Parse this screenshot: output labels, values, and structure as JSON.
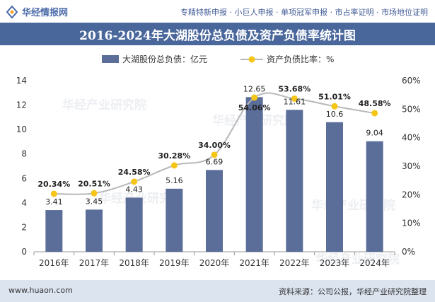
{
  "header": {
    "logo_text": "华经情报网",
    "services": "专精特新申报 · 小巨人申报 · 单项冠军申报 · 市占率证明 · 市场地位证明"
  },
  "chart_data": {
    "type": "bar+line",
    "title": "2016-2024年大湖股份总负债及资产负债率统计图",
    "categories": [
      "2016年",
      "2017年",
      "2018年",
      "2019年",
      "2020年",
      "2021年",
      "2022年",
      "2023年",
      "2024年"
    ],
    "series": [
      {
        "name": "大湖股份总负债：亿元",
        "type": "bar",
        "axis": "left",
        "values": [
          3.41,
          3.45,
          4.43,
          5.16,
          6.69,
          12.65,
          11.61,
          10.6,
          9.04
        ],
        "labels": [
          "3.41",
          "3.45",
          "4.43",
          "5.16",
          "6.69",
          "12.65",
          "11.61",
          "10.6",
          "9.04"
        ]
      },
      {
        "name": "资产负债比率：%",
        "type": "line",
        "axis": "right",
        "values": [
          20.34,
          20.51,
          24.58,
          30.28,
          34.0,
          54.06,
          53.68,
          51.01,
          48.58
        ],
        "labels": [
          "20.34%",
          "20.51%",
          "24.58%",
          "30.28%",
          "34.00%",
          "54.06%",
          "53.68%",
          "51.01%",
          "48.58%"
        ]
      }
    ],
    "y_left": {
      "min": 0,
      "max": 14,
      "ticks": [
        "0",
        "2",
        "4",
        "6",
        "8",
        "10",
        "12",
        "14"
      ]
    },
    "y_right": {
      "min": 0,
      "max": 60,
      "ticks": [
        "0%",
        "10%",
        "20%",
        "30%",
        "40%",
        "50%",
        "60%"
      ]
    },
    "legend_position": "top-center",
    "colors": {
      "bar": "#5b6e99",
      "line": "#b8b8b8",
      "marker": "#f5c518"
    },
    "watermarks": [
      "华经产业研究院",
      "www.huaon.com"
    ]
  },
  "footer": {
    "website": "www.huaon.com",
    "source": "资料来源：公司公报，华经产业研究院整理"
  }
}
